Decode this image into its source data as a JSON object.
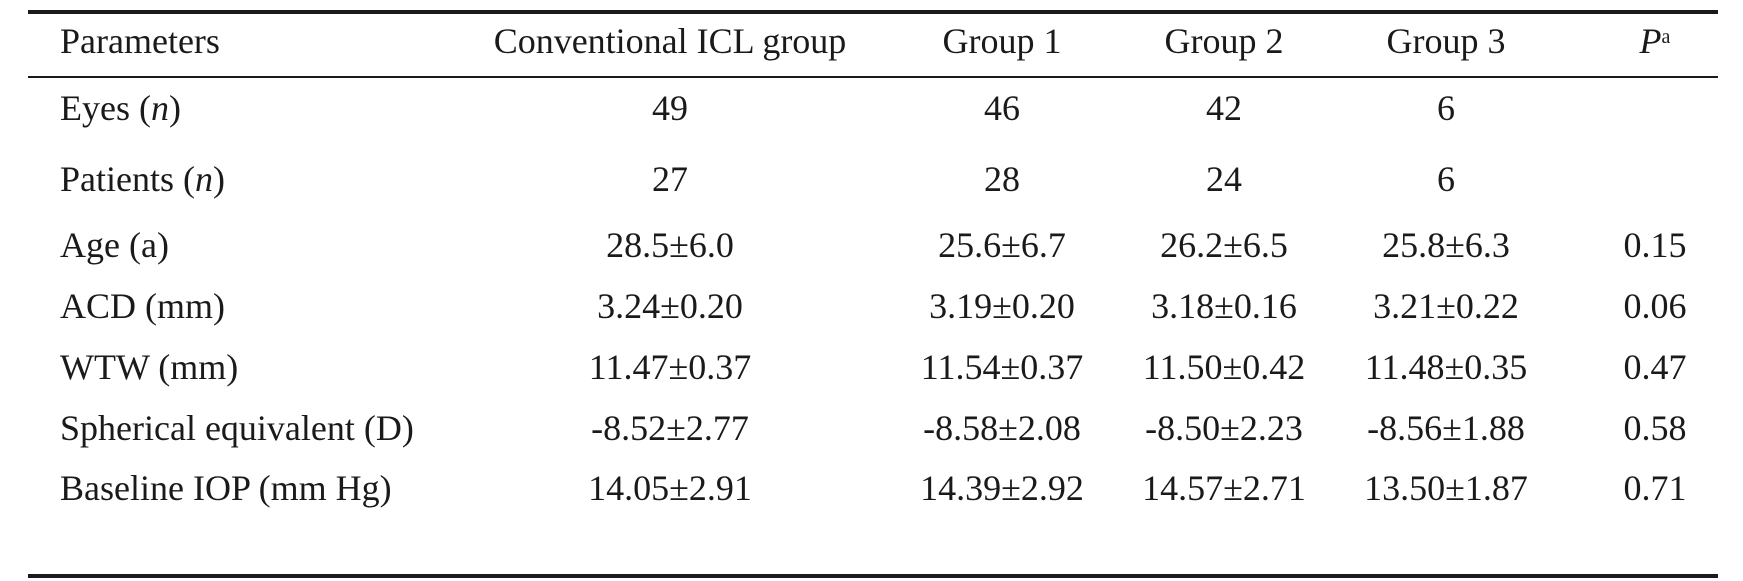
{
  "table": {
    "header": {
      "parameters": "Parameters",
      "conventional": "Conventional ICL group",
      "group1": "Group 1",
      "group2": "Group 2",
      "group3": "Group 3",
      "p_symbol": "P",
      "p_superscript": "a"
    },
    "rows": [
      {
        "label": "Eyes (",
        "label_var": "n",
        "label_end": ")",
        "conventional": "49",
        "group1": "46",
        "group2": "42",
        "group3": "6",
        "p": ""
      },
      {
        "label": "Patients (",
        "label_var": "n",
        "label_end": ")",
        "conventional": "27",
        "group1": "28",
        "group2": "24",
        "group3": "6",
        "p": ""
      },
      {
        "label": "Age (a)",
        "conventional": "28.5±6.0",
        "group1": "25.6±6.7",
        "group2": "26.2±6.5",
        "group3": "25.8±6.3",
        "p": "0.15"
      },
      {
        "label": "ACD (mm)",
        "conventional": "3.24±0.20",
        "group1": "3.19±0.20",
        "group2": "3.18±0.16",
        "group3": "3.21±0.22",
        "p": "0.06"
      },
      {
        "label": "WTW (mm)",
        "conventional": "11.47±0.37",
        "group1": "11.54±0.37",
        "group2": "11.50±0.42",
        "group3": "11.48±0.35",
        "p": "0.47"
      },
      {
        "label": "Spherical equivalent (D)",
        "conventional": "-8.52±2.77",
        "group1": "-8.58±2.08",
        "group2": "-8.50±2.23",
        "group3": "-8.56±1.88",
        "p": "0.58"
      },
      {
        "label": "Baseline IOP (mm Hg)",
        "conventional": "14.05±2.91",
        "group1": "14.39±2.92",
        "group2": "14.57±2.71",
        "group3": "13.50±1.87",
        "p": "0.71"
      }
    ]
  }
}
